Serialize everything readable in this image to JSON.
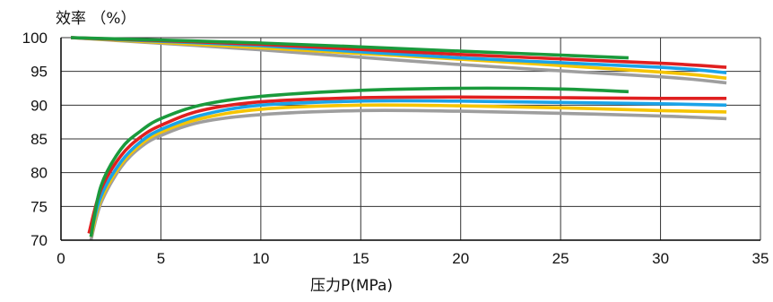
{
  "chart_data": {
    "type": "line",
    "title": "",
    "ylabel": "效率 （%）",
    "xlabel": "压力P(MPa)",
    "xlim": [
      0,
      35
    ],
    "ylim": [
      70,
      100
    ],
    "xticks": [
      0,
      5,
      10,
      15,
      20,
      25,
      30,
      35
    ],
    "yticks": [
      70,
      75,
      80,
      85,
      90,
      95,
      100
    ],
    "grid": true,
    "legend": "none",
    "series": [
      {
        "color": "#9e9e9e",
        "points": [
          [
            0.5,
            100
          ],
          [
            10,
            98.2
          ],
          [
            20,
            96.0
          ],
          [
            30,
            94.2
          ],
          [
            33.3,
            93.3
          ]
        ]
      },
      {
        "color": "#f5c400",
        "points": [
          [
            0.5,
            100
          ],
          [
            10,
            98.5
          ],
          [
            20,
            96.8
          ],
          [
            30,
            94.9
          ],
          [
            33.3,
            94.0
          ]
        ]
      },
      {
        "color": "#1aa3e8",
        "points": [
          [
            0.5,
            100
          ],
          [
            10,
            98.8
          ],
          [
            20,
            97.0
          ],
          [
            30,
            95.6
          ],
          [
            33.3,
            94.8
          ]
        ]
      },
      {
        "color": "#e02020",
        "points": [
          [
            0.5,
            100
          ],
          [
            10,
            99.0
          ],
          [
            20,
            97.5
          ],
          [
            30,
            96.2
          ],
          [
            33.3,
            95.6
          ]
        ]
      },
      {
        "color": "#1a9a3c",
        "points": [
          [
            0.5,
            100
          ],
          [
            10,
            99.2
          ],
          [
            20,
            98.0
          ],
          [
            28.4,
            97.0
          ]
        ]
      },
      {
        "color": "#9e9e9e",
        "points": [
          [
            1.5,
            70
          ],
          [
            2,
            75.5
          ],
          [
            3,
            80.8
          ],
          [
            4,
            83.8
          ],
          [
            5,
            85.5
          ],
          [
            7,
            87.5
          ],
          [
            10,
            88.6
          ],
          [
            15,
            89.2
          ],
          [
            20,
            89.1
          ],
          [
            25,
            88.8
          ],
          [
            30,
            88.4
          ],
          [
            33.3,
            88.0
          ]
        ]
      },
      {
        "color": "#f5c400",
        "points": [
          [
            1.5,
            70.5
          ],
          [
            2,
            76
          ],
          [
            3,
            81.2
          ],
          [
            4,
            84.2
          ],
          [
            5,
            86.0
          ],
          [
            7,
            88.0
          ],
          [
            10,
            89.4
          ],
          [
            15,
            90.0
          ],
          [
            20,
            89.9
          ],
          [
            25,
            89.6
          ],
          [
            30,
            89.2
          ],
          [
            33.3,
            89.0
          ]
        ]
      },
      {
        "color": "#1aa3e8",
        "points": [
          [
            1.5,
            71
          ],
          [
            2,
            76.5
          ],
          [
            3,
            81.6
          ],
          [
            4,
            84.6
          ],
          [
            5,
            86.4
          ],
          [
            7,
            88.5
          ],
          [
            10,
            90.0
          ],
          [
            15,
            90.6
          ],
          [
            20,
            90.6
          ],
          [
            25,
            90.4
          ],
          [
            30,
            90.2
          ],
          [
            33.3,
            90.0
          ]
        ]
      },
      {
        "color": "#e02020",
        "points": [
          [
            1.4,
            71
          ],
          [
            2,
            77.5
          ],
          [
            3,
            82.5
          ],
          [
            4,
            85.3
          ],
          [
            5,
            87.0
          ],
          [
            7,
            89.2
          ],
          [
            10,
            90.5
          ],
          [
            15,
            91.1
          ],
          [
            20,
            91.2
          ],
          [
            25,
            91.1
          ],
          [
            30,
            91.0
          ],
          [
            33.3,
            91.0
          ]
        ]
      },
      {
        "color": "#1a9a3c",
        "points": [
          [
            1.5,
            70.5
          ],
          [
            2,
            78
          ],
          [
            3,
            83.5
          ],
          [
            4,
            86.2
          ],
          [
            5,
            88.0
          ],
          [
            7,
            90.0
          ],
          [
            10,
            91.3
          ],
          [
            15,
            92.2
          ],
          [
            20,
            92.5
          ],
          [
            25,
            92.4
          ],
          [
            28.4,
            92.0
          ]
        ]
      }
    ]
  }
}
